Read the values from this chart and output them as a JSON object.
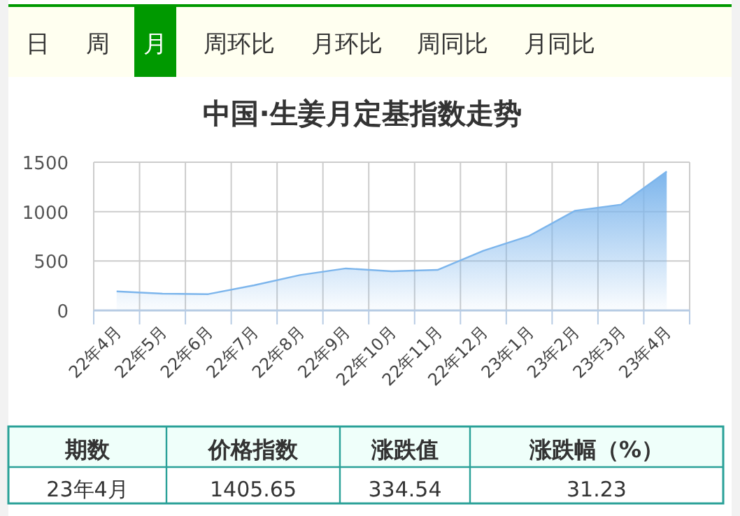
{
  "chart_data": {
    "type": "area",
    "title": "中国·生姜月定基指数走势",
    "categories": [
      "22年4月",
      "22年5月",
      "22年6月",
      "22年7月",
      "22年8月",
      "22年9月",
      "22年10月",
      "22年11月",
      "22年12月",
      "23年1月",
      "23年2月",
      "23年3月",
      "23年4月"
    ],
    "series": [
      {
        "color": "#7cb5ec",
        "values": [
          193,
          170,
          165,
          255,
          358,
          425,
          396,
          410,
          604,
          755,
          1009,
          1071,
          1405.65
        ]
      }
    ],
    "ylim": [
      0,
      1500
    ],
    "yticks": [
      0,
      500,
      1000,
      1500
    ],
    "grid": true,
    "annotations": [
      "日",
      "周",
      "月",
      "周环比",
      "月环比",
      "周同比",
      "月同比",
      "期数",
      "价格指数",
      "涨跌值",
      "涨跌幅（%）",
      "23年4月",
      "1405.65",
      "334.54",
      "31.23"
    ]
  }
}
